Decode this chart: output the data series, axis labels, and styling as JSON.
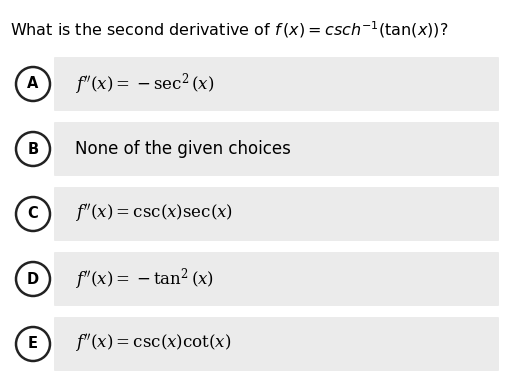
{
  "background_color": "#ffffff",
  "option_bg_color": "#ebebeb",
  "circle_facecolor": "#ffffff",
  "circle_edgecolor": "#222222",
  "text_color": "#000000",
  "fig_width": 5.07,
  "fig_height": 3.82,
  "dpi": 100,
  "question_plain": "What is the second derivative of ",
  "question_math": "$f\\,(x) =\\mathit{csch}^{-1}(\\tan(x))$?",
  "labels": [
    "A",
    "B",
    "C",
    "D",
    "E"
  ],
  "option_texts": [
    "$f''(x) = -\\sec^2(x)$",
    "None of the given choices",
    "$f''(x) = \\csc(x)\\sec(x)$",
    "$f''(x) = -\\tan^2(x)$",
    "$f''(x) = \\csc(x)\\cot(x)$"
  ]
}
